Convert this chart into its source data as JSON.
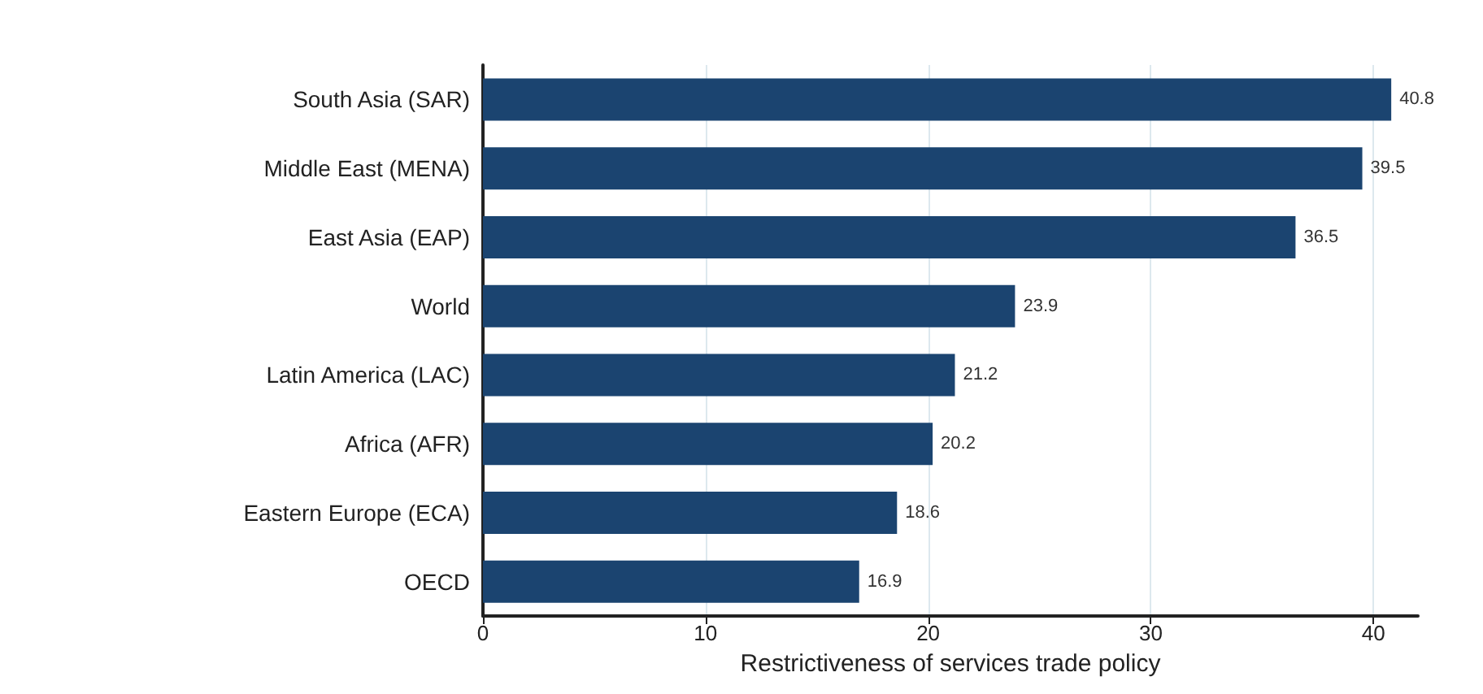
{
  "chart_data": {
    "type": "bar",
    "orientation": "horizontal",
    "xlabel": "Restrictiveness of services trade policy",
    "categories": [
      "South Asia (SAR)",
      "Middle East (MENA)",
      "East Asia (EAP)",
      "World",
      "Latin America (LAC)",
      "Africa (AFR)",
      "Eastern Europe (ECA)",
      "OECD"
    ],
    "values": [
      40.8,
      39.5,
      36.5,
      23.9,
      21.2,
      20.2,
      18.6,
      16.9
    ],
    "color": "#1b4470",
    "xlim": [
      0,
      42
    ],
    "xticks": [
      0,
      10,
      20,
      30,
      40
    ],
    "grid": "x",
    "data_labels": true
  }
}
